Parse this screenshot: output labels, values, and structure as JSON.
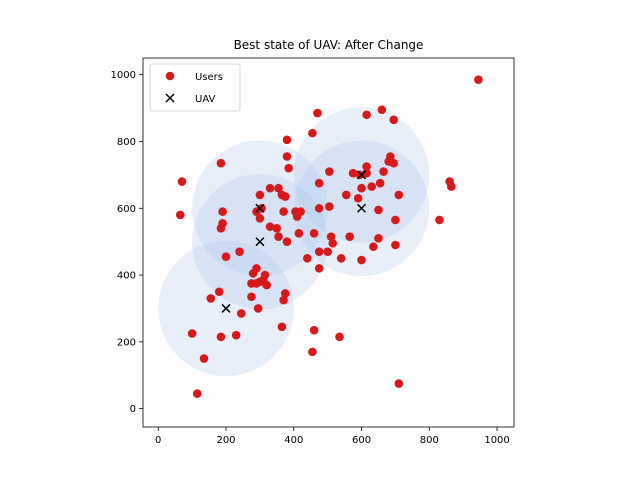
{
  "chart_data": {
    "type": "scatter",
    "title": "Best state of UAV: After Change",
    "xlabel": "",
    "ylabel": "",
    "xlim": [
      -45,
      1050
    ],
    "ylim": [
      -55,
      1050
    ],
    "xticks": [
      0,
      200,
      400,
      600,
      800,
      1000
    ],
    "yticks": [
      0,
      200,
      400,
      600,
      800,
      1000
    ],
    "grid": false,
    "legend_position": "upper-left",
    "colors": {
      "users": "#d7191c",
      "uav": "#000000",
      "coverage": "#aec7e8"
    },
    "coverage_radius": 200,
    "series": [
      {
        "name": "Users",
        "marker": "circle",
        "points": [
          [
            70,
            680
          ],
          [
            65,
            580
          ],
          [
            185,
            735
          ],
          [
            190,
            590
          ],
          [
            185,
            540
          ],
          [
            190,
            555
          ],
          [
            200,
            455
          ],
          [
            240,
            470
          ],
          [
            230,
            220
          ],
          [
            245,
            285
          ],
          [
            185,
            215
          ],
          [
            180,
            350
          ],
          [
            155,
            330
          ],
          [
            100,
            225
          ],
          [
            135,
            150
          ],
          [
            115,
            45
          ],
          [
            290,
            590
          ],
          [
            300,
            640
          ],
          [
            305,
            600
          ],
          [
            300,
            570
          ],
          [
            330,
            660
          ],
          [
            355,
            660
          ],
          [
            365,
            640
          ],
          [
            375,
            635
          ],
          [
            380,
            755
          ],
          [
            385,
            720
          ],
          [
            380,
            805
          ],
          [
            330,
            545
          ],
          [
            350,
            540
          ],
          [
            355,
            515
          ],
          [
            380,
            500
          ],
          [
            370,
            590
          ],
          [
            405,
            590
          ],
          [
            410,
            575
          ],
          [
            420,
            590
          ],
          [
            415,
            525
          ],
          [
            440,
            450
          ],
          [
            455,
            825
          ],
          [
            470,
            885
          ],
          [
            475,
            600
          ],
          [
            475,
            675
          ],
          [
            460,
            525
          ],
          [
            475,
            470
          ],
          [
            475,
            420
          ],
          [
            500,
            470
          ],
          [
            510,
            515
          ],
          [
            515,
            495
          ],
          [
            540,
            450
          ],
          [
            565,
            515
          ],
          [
            575,
            705
          ],
          [
            595,
            700
          ],
          [
            600,
            445
          ],
          [
            600,
            660
          ],
          [
            615,
            705
          ],
          [
            615,
            725
          ],
          [
            630,
            665
          ],
          [
            635,
            485
          ],
          [
            650,
            510
          ],
          [
            650,
            595
          ],
          [
            655,
            675
          ],
          [
            660,
            895
          ],
          [
            665,
            710
          ],
          [
            680,
            740
          ],
          [
            685,
            755
          ],
          [
            695,
            735
          ],
          [
            695,
            865
          ],
          [
            700,
            565
          ],
          [
            700,
            490
          ],
          [
            710,
            640
          ],
          [
            615,
            880
          ],
          [
            590,
            630
          ],
          [
            555,
            640
          ],
          [
            505,
            710
          ],
          [
            505,
            605
          ],
          [
            290,
            420
          ],
          [
            280,
            405
          ],
          [
            290,
            375
          ],
          [
            300,
            380
          ],
          [
            310,
            385
          ],
          [
            315,
            400
          ],
          [
            320,
            370
          ],
          [
            295,
            300
          ],
          [
            275,
            375
          ],
          [
            275,
            335
          ],
          [
            365,
            245
          ],
          [
            370,
            325
          ],
          [
            375,
            345
          ],
          [
            460,
            235
          ],
          [
            455,
            170
          ],
          [
            535,
            215
          ],
          [
            710,
            75
          ],
          [
            830,
            565
          ],
          [
            860,
            680
          ],
          [
            865,
            665
          ],
          [
            945,
            985
          ]
        ]
      },
      {
        "name": "UAV",
        "marker": "x",
        "points": [
          [
            200,
            300
          ],
          [
            300,
            500
          ],
          [
            300,
            600
          ],
          [
            600,
            600
          ],
          [
            600,
            700
          ]
        ]
      }
    ]
  },
  "legend": {
    "users_label": "Users",
    "uav_label": "UAV"
  }
}
